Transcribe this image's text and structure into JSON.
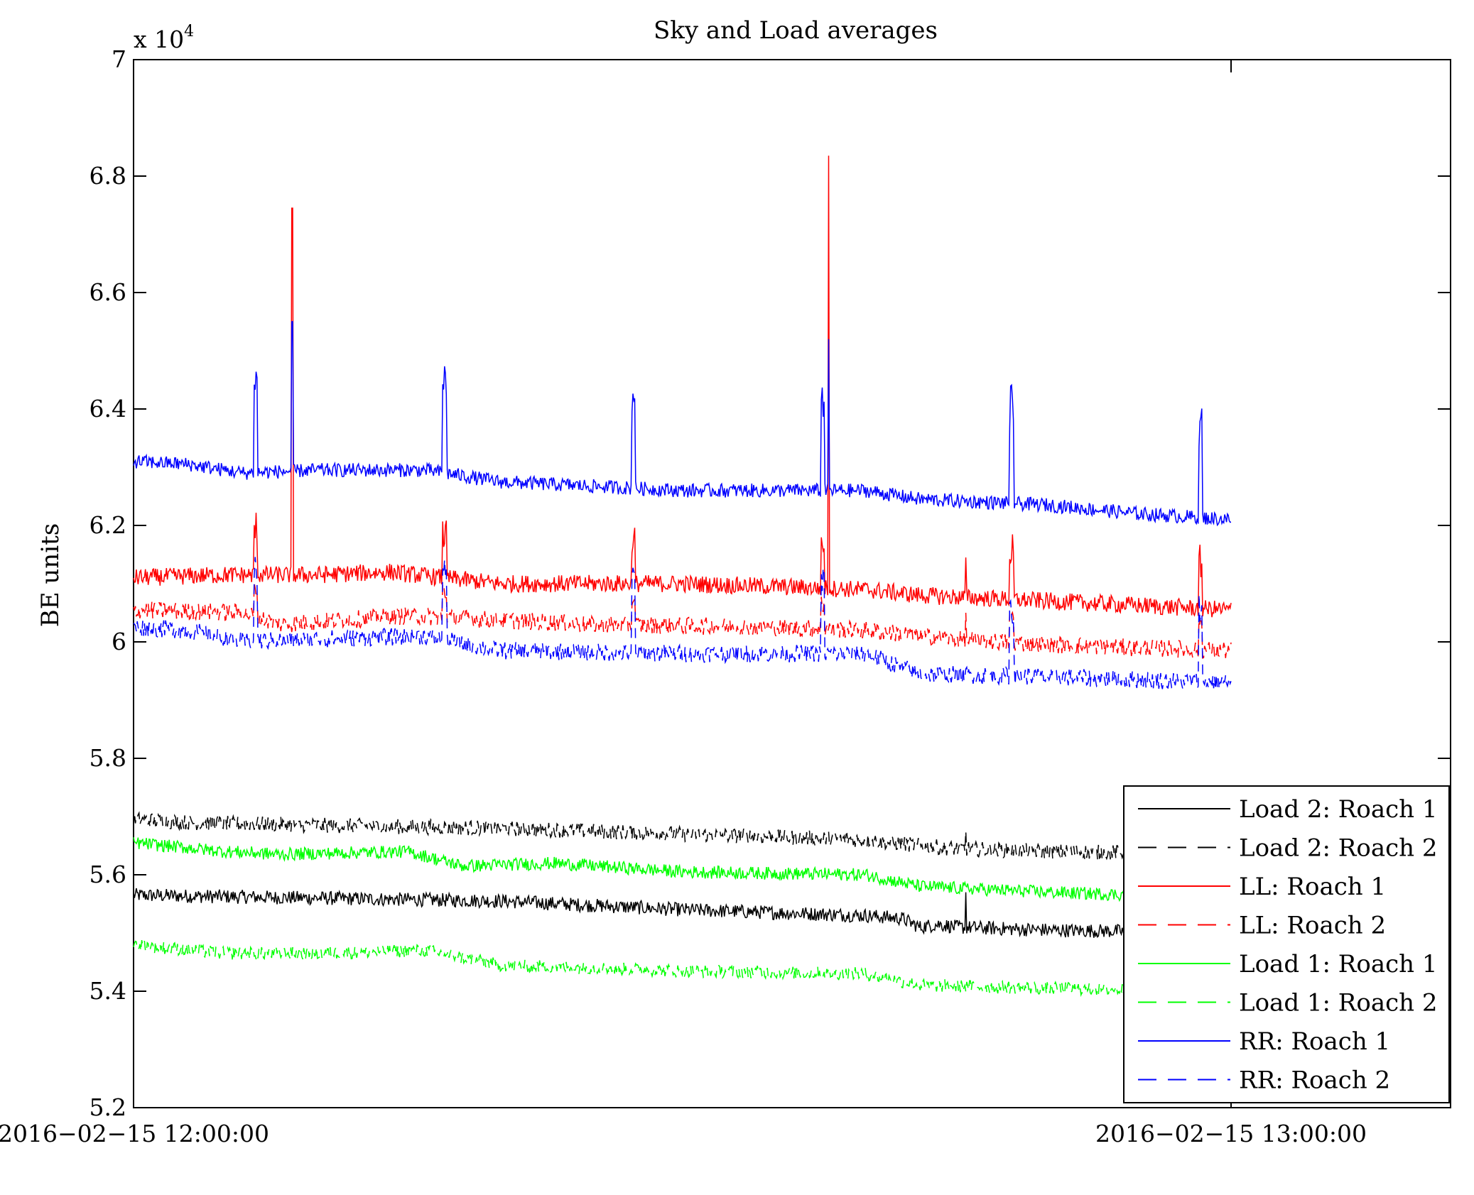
{
  "chart_data": {
    "type": "line",
    "title": "Sky and Load averages",
    "ylabel": "BE units",
    "y_multiplier_label": "x 10",
    "y_multiplier_exponent": "4",
    "ylim": [
      52000,
      70000
    ],
    "yticks": [
      52000,
      54000,
      56000,
      58000,
      60000,
      62000,
      64000,
      66000,
      68000,
      70000
    ],
    "ytick_labels": [
      "5.2",
      "5.4",
      "5.6",
      "5.8",
      "6",
      "6.2",
      "6.4",
      "6.6",
      "6.8",
      "7"
    ],
    "xlim": [
      "2016-02-15 12:00:00",
      "2016-02-15 13:12:00"
    ],
    "xticks": [
      "2016-02-15 12:00:00",
      "2016-02-15 13:00:00"
    ],
    "xtick_labels": [
      "2016−02−15 12:00:00",
      "2016−02−15 13:00:00"
    ],
    "grid": false,
    "legend_position": "bottom-right",
    "spike_times": [
      "2016-02-15 12:06:40",
      "2016-02-15 12:17:00",
      "2016-02-15 12:27:20",
      "2016-02-15 12:37:40",
      "2016-02-15 12:48:00",
      "2016-02-15 12:58:20"
    ],
    "series": [
      {
        "name": "Load 2: Roach 1",
        "color": "#000000",
        "dash": "solid",
        "noise": 120,
        "x": [
          "2016-02-15 12:00:00",
          "2016-02-15 12:10:00",
          "2016-02-15 12:20:00",
          "2016-02-15 12:30:00",
          "2016-02-15 12:40:00",
          "2016-02-15 12:42:00",
          "2016-02-15 12:43:00",
          "2016-02-15 12:44:00",
          "2016-02-15 12:45:00",
          "2016-02-15 12:50:00",
          "2016-02-15 13:00:00"
        ],
        "y": [
          55650,
          55600,
          55550,
          55400,
          55300,
          55250,
          55100,
          55150,
          55100,
          55050,
          55000
        ],
        "events": [
          {
            "x": "2016-02-15 12:45:30",
            "peak": 55700
          }
        ]
      },
      {
        "name": "Load 2: Roach 2",
        "color": "#000000",
        "dash": "dashed",
        "noise": 130,
        "x": [
          "2016-02-15 12:00:00",
          "2016-02-15 12:03:00",
          "2016-02-15 12:10:00",
          "2016-02-15 12:20:00",
          "2016-02-15 12:30:00",
          "2016-02-15 12:40:00",
          "2016-02-15 12:43:00",
          "2016-02-15 12:45:00",
          "2016-02-15 12:50:00",
          "2016-02-15 13:00:00"
        ],
        "y": [
          56950,
          56900,
          56850,
          56800,
          56700,
          56600,
          56500,
          56450,
          56400,
          56350
        ],
        "events": [
          {
            "x": "2016-02-15 12:45:30",
            "peak": 56750
          }
        ]
      },
      {
        "name": "LL: Roach 1",
        "color": "#ff0000",
        "dash": "solid",
        "noise": 150,
        "x": [
          "2016-02-15 12:00:00",
          "2016-02-15 12:05:00",
          "2016-02-15 12:10:00",
          "2016-02-15 12:14:00",
          "2016-02-15 12:20:00",
          "2016-02-15 12:30:00",
          "2016-02-15 12:40:00",
          "2016-02-15 12:43:00",
          "2016-02-15 12:50:00",
          "2016-02-15 13:00:00"
        ],
        "y": [
          61100,
          61150,
          61150,
          61200,
          61000,
          61000,
          60900,
          60800,
          60700,
          60550
        ],
        "events": [
          {
            "x": "2016-02-15 12:08:40",
            "peak": 67450
          },
          {
            "x": "2016-02-15 12:38:00",
            "peak": 68350
          },
          {
            "x": "2016-02-15 12:45:30",
            "peak": 61450
          }
        ]
      },
      {
        "name": "LL: Roach 2",
        "color": "#ff0000",
        "dash": "dashed",
        "noise": 150,
        "x": [
          "2016-02-15 12:00:00",
          "2016-02-15 12:06:00",
          "2016-02-15 12:08:00",
          "2016-02-15 12:15:00",
          "2016-02-15 12:25:00",
          "2016-02-15 12:35:00",
          "2016-02-15 12:40:00",
          "2016-02-15 12:45:00",
          "2016-02-15 12:50:00",
          "2016-02-15 13:00:00"
        ],
        "y": [
          60550,
          60500,
          60300,
          60450,
          60300,
          60250,
          60200,
          60050,
          59950,
          59850
        ],
        "events": [
          {
            "x": "2016-02-15 12:45:30",
            "peak": 60500
          }
        ]
      },
      {
        "name": "Load 1: Roach 1",
        "color": "#00ff00",
        "dash": "solid",
        "noise": 110,
        "x": [
          "2016-02-15 12:00:00",
          "2016-02-15 12:05:00",
          "2016-02-15 12:08:00",
          "2016-02-15 12:15:00",
          "2016-02-15 12:18:00",
          "2016-02-15 12:23:00",
          "2016-02-15 12:30:00",
          "2016-02-15 12:40:00",
          "2016-02-15 12:43:00",
          "2016-02-15 12:50:00",
          "2016-02-15 13:00:00"
        ],
        "y": [
          56550,
          56400,
          56350,
          56400,
          56150,
          56200,
          56050,
          56000,
          55800,
          55700,
          55600
        ]
      },
      {
        "name": "Load 1: Roach 2",
        "color": "#00ff00",
        "dash": "dashed",
        "noise": 110,
        "x": [
          "2016-02-15 12:00:00",
          "2016-02-15 12:05:00",
          "2016-02-15 12:10:00",
          "2016-02-15 12:16:00",
          "2016-02-15 12:20:00",
          "2016-02-15 12:30:00",
          "2016-02-15 12:40:00",
          "2016-02-15 12:43:00",
          "2016-02-15 12:50:00",
          "2016-02-15 13:00:00"
        ],
        "y": [
          54800,
          54650,
          54650,
          54700,
          54450,
          54350,
          54300,
          54100,
          54050,
          54000
        ]
      },
      {
        "name": "RR: Roach 1",
        "color": "#0000ff",
        "dash": "solid",
        "noise": 120,
        "x": [
          "2016-02-15 12:00:00",
          "2016-02-15 12:03:00",
          "2016-02-15 12:06:00",
          "2016-02-15 12:10:00",
          "2016-02-15 12:16:00",
          "2016-02-15 12:20:00",
          "2016-02-15 12:30:00",
          "2016-02-15 12:40:00",
          "2016-02-15 12:43:00",
          "2016-02-15 12:50:00",
          "2016-02-15 12:55:00",
          "2016-02-15 13:00:00"
        ],
        "y": [
          63100,
          63050,
          62900,
          62950,
          62950,
          62750,
          62600,
          62600,
          62450,
          62350,
          62200,
          62100
        ],
        "events": [
          {
            "x": "2016-02-15 12:08:40",
            "peak": 65500
          },
          {
            "x": "2016-02-15 12:38:00",
            "peak": 65200
          }
        ]
      },
      {
        "name": "RR: Roach 2",
        "color": "#0000ff",
        "dash": "dashed",
        "noise": 150,
        "x": [
          "2016-02-15 12:00:00",
          "2016-02-15 12:03:00",
          "2016-02-15 12:06:00",
          "2016-02-15 12:10:00",
          "2016-02-15 12:16:00",
          "2016-02-15 12:20:00",
          "2016-02-15 12:30:00",
          "2016-02-15 12:40:00",
          "2016-02-15 12:43:00",
          "2016-02-15 12:50:00",
          "2016-02-15 12:55:00",
          "2016-02-15 13:00:00"
        ],
        "y": [
          60250,
          60200,
          60000,
          60050,
          60100,
          59850,
          59800,
          59800,
          59450,
          59400,
          59350,
          59300
        ]
      }
    ]
  }
}
